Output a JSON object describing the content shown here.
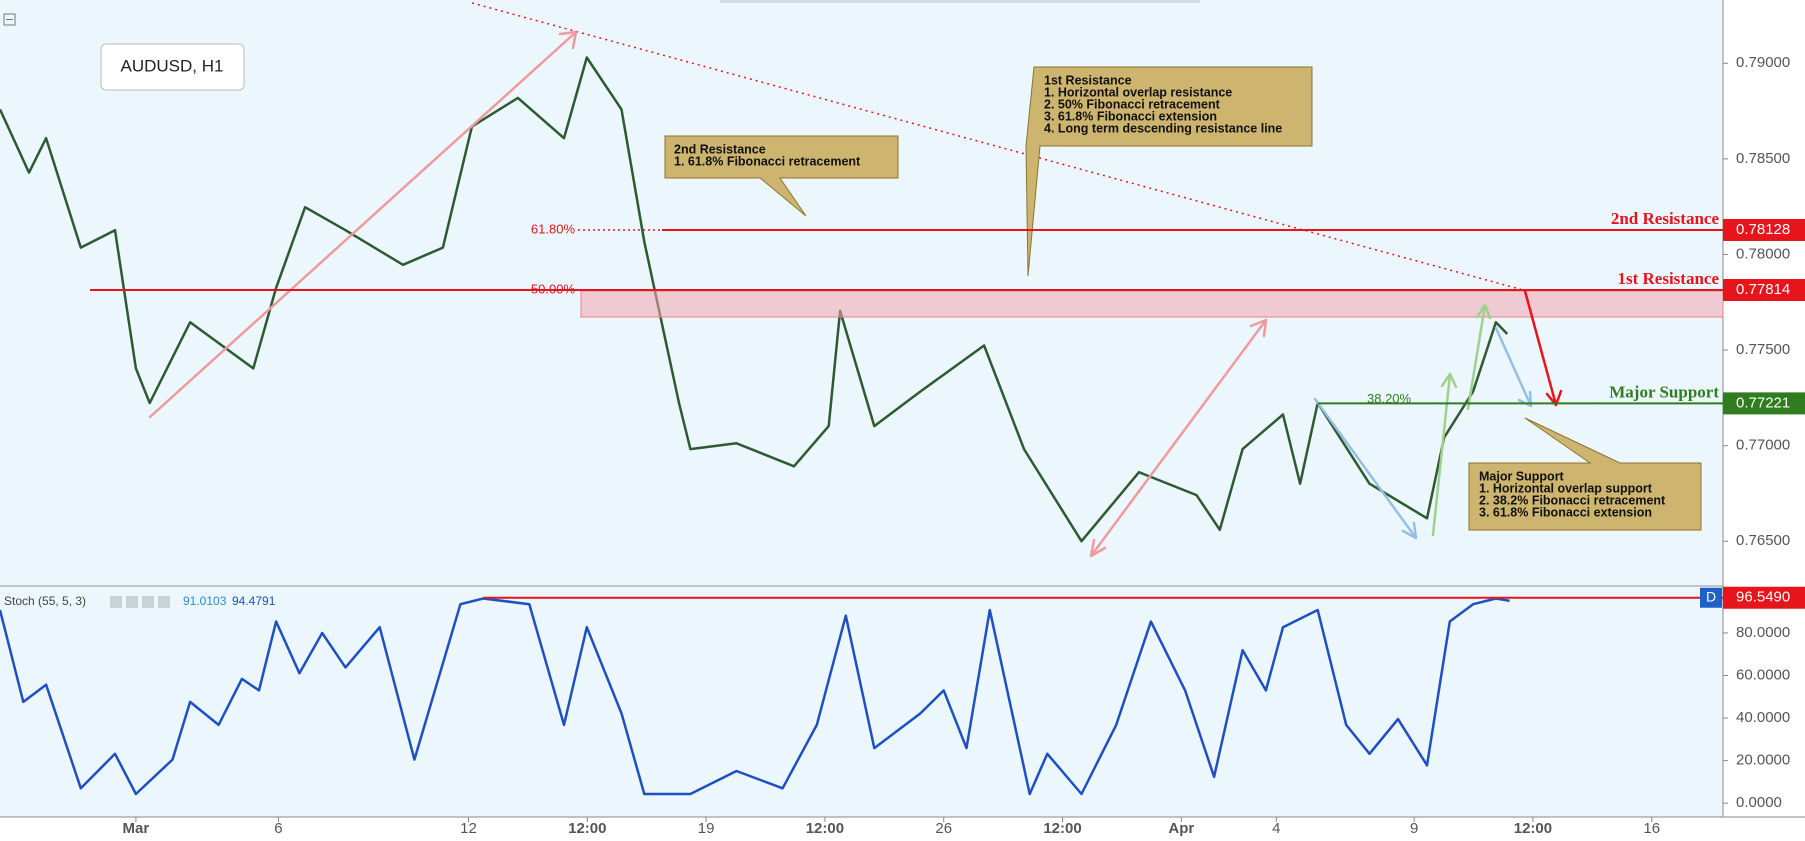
{
  "chart_data": {
    "type": "line",
    "title": "AUDUSD, H1",
    "color": "#2e5a32",
    "x": [
      -2.86,
      -2.25,
      -1.89,
      -1.16,
      -0.44,
      0,
      0.29,
      1.14,
      2.47,
      2.95,
      3.56,
      4.41,
      5.62,
      6.46,
      7.07,
      8.04,
      9.01,
      9.49,
      10.22,
      10.7,
      11.43,
      11.67,
      12.64,
      13.85,
      14.58,
      14.82,
      15.54,
      16.51,
      17.85,
      18.69,
      19.9,
      21.11,
      22.32,
      22.81,
      23.29,
      24.14,
      24.5,
      24.87,
      25.96,
      27.17,
      27.53,
      28.14,
      28.62,
      28.86
    ],
    "values": [
      0.78759,
      0.78428,
      0.78608,
      0.78036,
      0.78127,
      0.77404,
      0.77223,
      0.77645,
      0.77404,
      0.77825,
      0.78247,
      0.78127,
      0.77946,
      0.78036,
      0.78669,
      0.78819,
      0.78608,
      0.7903,
      0.78759,
      0.78066,
      0.77223,
      0.76982,
      0.77012,
      0.76892,
      0.77102,
      0.77705,
      0.77102,
      0.77283,
      0.77524,
      0.76982,
      0.765,
      0.76861,
      0.76741,
      0.7656,
      0.76982,
      0.77163,
      0.76801,
      0.77223,
      0.76801,
      0.7662,
      0.77042,
      0.77283,
      0.77645,
      0.77584
    ],
    "xlim": [
      -2.86,
      33.4
    ],
    "xticks": [
      {
        "value": 0,
        "label": "Mar"
      },
      {
        "value": 3,
        "label": "6"
      },
      {
        "value": 7,
        "label": "12"
      },
      {
        "value": 9.5,
        "label": "12:00"
      },
      {
        "value": 12,
        "label": "19"
      },
      {
        "value": 14.5,
        "label": "12:00"
      },
      {
        "value": 17,
        "label": "26"
      },
      {
        "value": 19.5,
        "label": "12:00"
      },
      {
        "value": 22,
        "label": "Apr"
      },
      {
        "value": 24,
        "label": "4"
      },
      {
        "value": 26.9,
        "label": "9"
      },
      {
        "value": 29.4,
        "label": "12:00"
      },
      {
        "value": 31.9,
        "label": "16"
      }
    ],
    "ylim": [
      0.76271,
      0.79331
    ],
    "yticks": [
      {
        "value": 0.765,
        "label": "0.76500"
      },
      {
        "value": 0.77,
        "label": "0.77000"
      },
      {
        "value": 0.775,
        "label": "0.77500"
      },
      {
        "value": 0.78,
        "label": "0.78000"
      },
      {
        "value": 0.785,
        "label": "0.78500"
      },
      {
        "value": 0.79,
        "label": "0.79000"
      }
    ],
    "levels": [
      {
        "label": "2nd Resistance",
        "value": 0.78128,
        "fib": "61.80%",
        "color": "#e8141c"
      },
      {
        "label": "1st Resistance",
        "value": 0.77814,
        "fib": "50.00%",
        "color": "#e8141c"
      },
      {
        "label": "Major Support",
        "value": 0.77221,
        "fib": "38.20%",
        "color": "#2f7d1e"
      }
    ],
    "annotations": [
      {
        "title": "2nd Resistance",
        "lines": [
          "1. 61.8% Fibonacci retracement"
        ]
      },
      {
        "title": "1st Resistance",
        "lines": [
          "1. Horizontal overlap resistance",
          "2. 50% Fibonacci retracement",
          "3. 61.8% Fibonacci extension",
          "4. Long term descending resistance line"
        ]
      },
      {
        "title": "Major Support",
        "lines": [
          "1. Horizontal overlap support",
          "2. 38.2% Fibonacci retracement",
          "3. 61.8% Fibonacci extension"
        ]
      }
    ],
    "stoch": {
      "title": "Stoch (55, 5, 3)",
      "readings": [
        91.0103,
        94.4791
      ],
      "color": "#1f4fc4",
      "x": [
        -2.86,
        -2.37,
        -1.89,
        -1.16,
        -0.44,
        0,
        0.77,
        1.14,
        1.74,
        2.23,
        2.59,
        2.95,
        3.44,
        3.92,
        4.41,
        5.13,
        5.86,
        6.83,
        7.31,
        8.28,
        9.01,
        9.49,
        10.22,
        10.7,
        11.67,
        12.64,
        13.61,
        14.33,
        14.94,
        15.54,
        16.51,
        17,
        17.48,
        17.97,
        18.81,
        19.18,
        19.9,
        20.63,
        21.36,
        22.08,
        22.69,
        23.29,
        23.78,
        24.14,
        24.87,
        25.47,
        25.96,
        26.56,
        27.17,
        27.65,
        28.14,
        28.62,
        28.91
      ],
      "values": [
        90.8,
        47.6,
        55.7,
        7,
        23.2,
        4.3,
        20.5,
        47.6,
        36.8,
        58.4,
        53,
        85.4,
        61.1,
        80,
        63.8,
        82.7,
        20.5,
        93.5,
        96.2,
        93.5,
        36.8,
        82.7,
        42.2,
        4.3,
        4.3,
        15.1,
        7,
        36.8,
        88.1,
        25.9,
        42.2,
        53,
        25.9,
        90.8,
        4.3,
        23.2,
        4.3,
        36.8,
        85.4,
        53,
        12.4,
        71.9,
        53,
        82.7,
        90.8,
        36.8,
        23.2,
        39.5,
        17.8,
        85.4,
        93.5,
        96.2,
        95.1
      ],
      "ylim": [
        -6.5,
        101.6
      ],
      "yticks": [
        {
          "value": 0,
          "label": "0.0000"
        },
        {
          "value": 20,
          "label": "20.0000"
        },
        {
          "value": 40,
          "label": "40.0000"
        },
        {
          "value": 60,
          "label": "60.0000"
        },
        {
          "value": 80,
          "label": "80.0000"
        }
      ],
      "level": {
        "value": 96.549,
        "label": "96.5490",
        "color": "#e8141c"
      },
      "badge": "D"
    }
  }
}
